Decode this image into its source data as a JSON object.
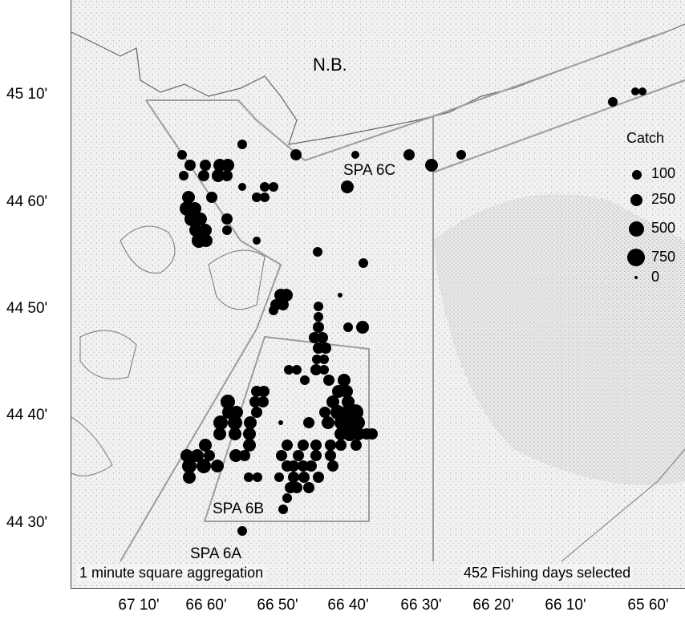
{
  "map": {
    "region_label": "N.B.",
    "area_labels": [
      "SPA 6C",
      "SPA 6B",
      "SPA 6A"
    ],
    "y_axis_labels": [
      "45 10'",
      "44 60'",
      "44 50'",
      "44 40'",
      "44 30'"
    ],
    "x_axis_labels": [
      "67 10'",
      "66 60'",
      "66 50'",
      "66 40'",
      "66 30'",
      "66 20'",
      "66 10'",
      "65 60'"
    ],
    "footer_left": "1 minute square aggregation",
    "footer_right": "452 Fishing days selected",
    "colors": {
      "land_stipple": "#c8c8c8",
      "boundary_line": "#999999",
      "catch_dot": "#000000"
    }
  },
  "legend": {
    "title": "Catch",
    "items": [
      {
        "label": "100",
        "value": 100
      },
      {
        "label": "250",
        "value": 250
      },
      {
        "label": "500",
        "value": 500
      },
      {
        "label": "750",
        "value": 750
      },
      {
        "label": "0",
        "value": 0
      }
    ]
  }
}
